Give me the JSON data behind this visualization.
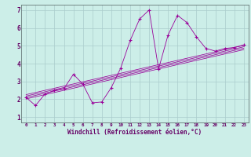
{
  "title": "",
  "xlabel": "Windchill (Refroidissement éolien,°C)",
  "ylabel": "",
  "bg_color": "#cceee8",
  "line_color": "#990099",
  "grid_color": "#aacccc",
  "spine_color": "#667777",
  "tick_color": "#660066",
  "xlim": [
    -0.5,
    23.5
  ],
  "ylim": [
    0.7,
    7.3
  ],
  "xticks": [
    0,
    1,
    2,
    3,
    4,
    5,
    6,
    7,
    8,
    9,
    10,
    11,
    12,
    13,
    14,
    15,
    16,
    17,
    18,
    19,
    20,
    21,
    22,
    23
  ],
  "yticks": [
    1,
    2,
    3,
    4,
    5,
    6,
    7
  ],
  "data_x": [
    0,
    1,
    2,
    3,
    4,
    5,
    6,
    7,
    8,
    9,
    10,
    11,
    12,
    13,
    14,
    15,
    16,
    17,
    18,
    19,
    20,
    21,
    22,
    23
  ],
  "data_y": [
    2.1,
    1.65,
    2.3,
    2.5,
    2.6,
    3.4,
    2.85,
    1.8,
    1.85,
    2.65,
    3.75,
    5.3,
    6.5,
    7.0,
    3.7,
    5.6,
    6.7,
    6.3,
    5.5,
    4.85,
    4.7,
    4.85,
    4.9,
    5.05
  ],
  "reg_lines": [
    {
      "x0": 0,
      "y0": 2.02,
      "x1": 23,
      "y1": 4.78
    },
    {
      "x0": 0,
      "y0": 2.1,
      "x1": 23,
      "y1": 4.86
    },
    {
      "x0": 0,
      "y0": 2.18,
      "x1": 23,
      "y1": 4.94
    },
    {
      "x0": 0,
      "y0": 2.26,
      "x1": 23,
      "y1": 5.02
    }
  ]
}
